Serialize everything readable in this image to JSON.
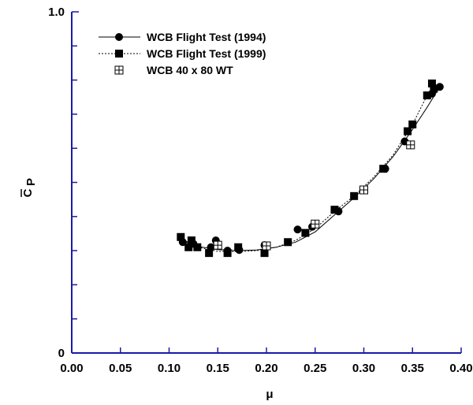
{
  "chart_data": {
    "type": "scatter",
    "title": "",
    "xlabel": "μ",
    "ylabel_main": "C",
    "ylabel_sub": "P",
    "xlim": [
      0.0,
      0.4
    ],
    "ylim": [
      0,
      1.0
    ],
    "x_ticks": [
      "0.00",
      "0.05",
      "0.10",
      "0.15",
      "0.20",
      "0.25",
      "0.30",
      "0.35",
      "0.40"
    ],
    "y_tick_labels": {
      "bottom": "0",
      "top": "1.0"
    },
    "y_minor_tick_count": 10,
    "grid": false,
    "legend_placement": "top-left",
    "axis_color": "#1a1aa6",
    "series": [
      {
        "name": "WCB Flight Test (1994)",
        "marker": "circle",
        "line": "solid",
        "points": [
          [
            0.114,
            0.325
          ],
          [
            0.125,
            0.32
          ],
          [
            0.148,
            0.33
          ],
          [
            0.143,
            0.31
          ],
          [
            0.16,
            0.3
          ],
          [
            0.172,
            0.302
          ],
          [
            0.198,
            0.316
          ],
          [
            0.232,
            0.362
          ],
          [
            0.247,
            0.37
          ],
          [
            0.274,
            0.415
          ],
          [
            0.322,
            0.54
          ],
          [
            0.342,
            0.62
          ],
          [
            0.37,
            0.76
          ],
          [
            0.378,
            0.78
          ]
        ],
        "curve": [
          [
            0.113,
            0.33
          ],
          [
            0.13,
            0.312
          ],
          [
            0.15,
            0.303
          ],
          [
            0.17,
            0.3
          ],
          [
            0.19,
            0.302
          ],
          [
            0.21,
            0.31
          ],
          [
            0.23,
            0.325
          ],
          [
            0.25,
            0.355
          ],
          [
            0.27,
            0.405
          ],
          [
            0.29,
            0.455
          ],
          [
            0.31,
            0.51
          ],
          [
            0.33,
            0.575
          ],
          [
            0.35,
            0.655
          ],
          [
            0.365,
            0.72
          ],
          [
            0.378,
            0.78
          ]
        ]
      },
      {
        "name": "WCB Flight Test (1999)",
        "marker": "square",
        "line": "dotted",
        "points": [
          [
            0.112,
            0.34
          ],
          [
            0.12,
            0.31
          ],
          [
            0.123,
            0.33
          ],
          [
            0.129,
            0.31
          ],
          [
            0.141,
            0.293
          ],
          [
            0.16,
            0.293
          ],
          [
            0.171,
            0.31
          ],
          [
            0.198,
            0.293
          ],
          [
            0.222,
            0.325
          ],
          [
            0.24,
            0.352
          ],
          [
            0.27,
            0.42
          ],
          [
            0.29,
            0.46
          ],
          [
            0.32,
            0.54
          ],
          [
            0.345,
            0.65
          ],
          [
            0.35,
            0.67
          ],
          [
            0.365,
            0.755
          ],
          [
            0.37,
            0.79
          ],
          [
            0.372,
            0.775
          ]
        ],
        "curve": [
          [
            0.112,
            0.335
          ],
          [
            0.13,
            0.31
          ],
          [
            0.15,
            0.298
          ],
          [
            0.17,
            0.297
          ],
          [
            0.19,
            0.3
          ],
          [
            0.21,
            0.31
          ],
          [
            0.23,
            0.33
          ],
          [
            0.25,
            0.365
          ],
          [
            0.27,
            0.415
          ],
          [
            0.29,
            0.46
          ],
          [
            0.31,
            0.515
          ],
          [
            0.33,
            0.58
          ],
          [
            0.35,
            0.67
          ],
          [
            0.365,
            0.755
          ],
          [
            0.372,
            0.785
          ]
        ]
      },
      {
        "name": "WCB 40 x 80 WT",
        "marker": "square-cross",
        "line": "none",
        "points": [
          [
            0.15,
            0.316
          ],
          [
            0.2,
            0.314
          ],
          [
            0.25,
            0.378
          ],
          [
            0.3,
            0.478
          ],
          [
            0.348,
            0.61
          ]
        ]
      }
    ]
  }
}
